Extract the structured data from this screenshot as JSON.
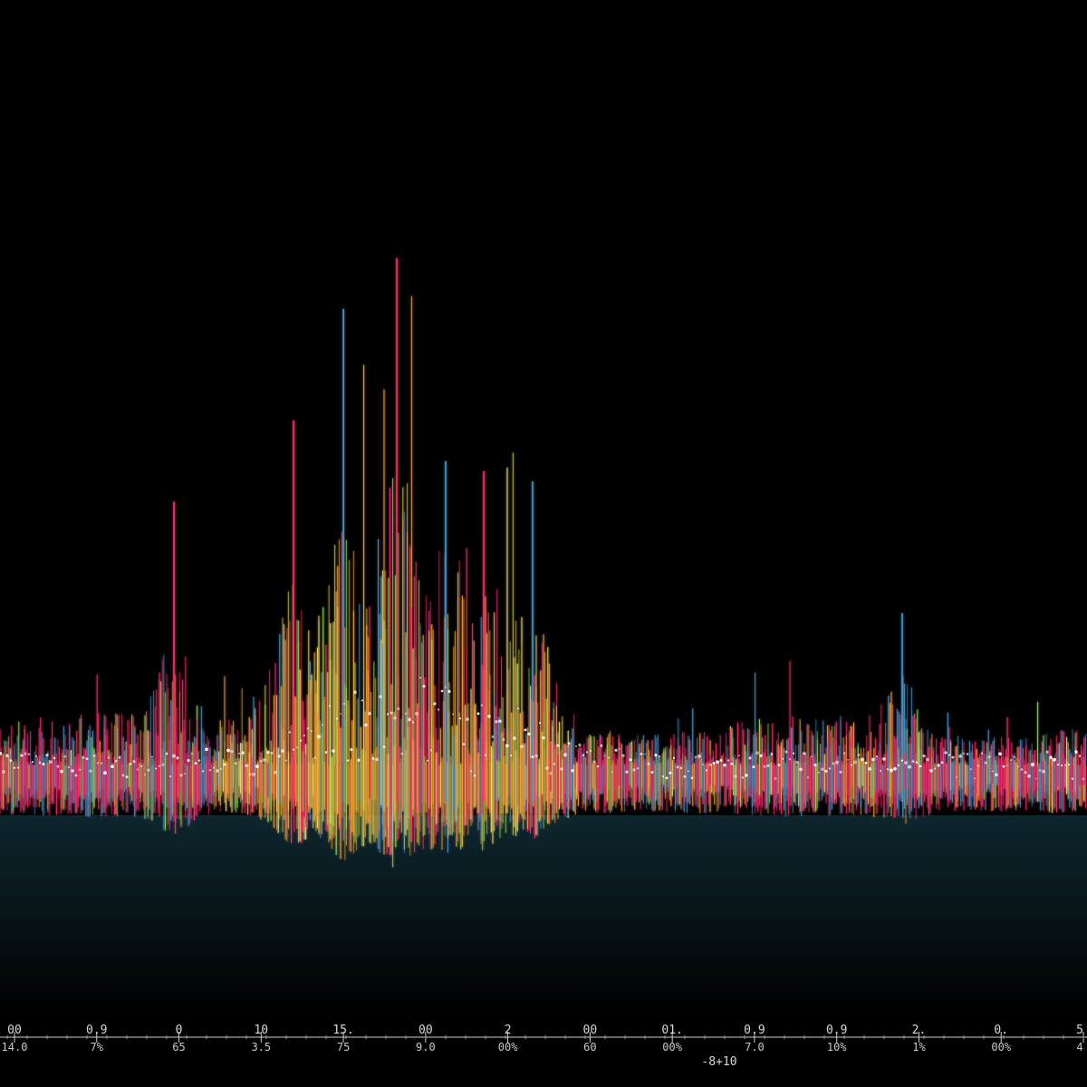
{
  "chart_data": {
    "type": "line",
    "title": "",
    "xlabel": "",
    "ylabel": "",
    "grid": false,
    "legend": "none",
    "x_tick_labels_top": [
      "00",
      "0.9",
      "0",
      "10",
      "15.",
      "00",
      "2",
      "00",
      "01.",
      "0.9",
      "0.9",
      "2.",
      "0.",
      "5"
    ],
    "x_tick_labels_bottom": [
      "14.0",
      "7%",
      "65",
      "3.5",
      "75",
      "9.0",
      "00%",
      "60",
      "00%",
      "7.0",
      "10%",
      "1%",
      "00%",
      "4"
    ],
    "x_axis_note": "-8+10",
    "series_colors": [
      "#ff2a6d",
      "#f7a531",
      "#f5e663",
      "#4a90c2",
      "#8ee04e"
    ],
    "baseline_color": "#ffffff",
    "peaks": [
      {
        "x": 0.27,
        "value": 0.68
      },
      {
        "x": 0.316,
        "value": 0.9
      },
      {
        "x": 0.365,
        "value": 1.0
      },
      {
        "x": 0.41,
        "value": 0.6
      },
      {
        "x": 0.445,
        "value": 0.58
      },
      {
        "x": 0.49,
        "value": 0.56
      },
      {
        "x": 0.16,
        "value": 0.52
      },
      {
        "x": 0.83,
        "value": 0.3
      }
    ]
  }
}
